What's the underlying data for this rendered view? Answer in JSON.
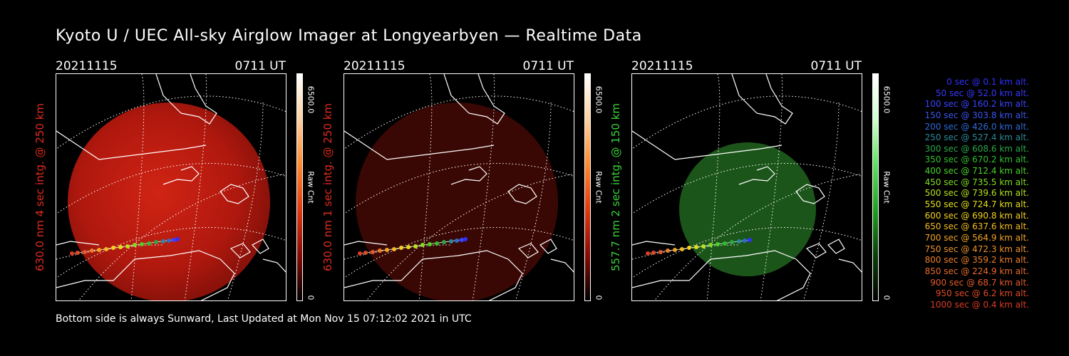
{
  "title": "Kyoto U / UEC All-sky Airglow Imager at Longyearbyen — Realtime Data",
  "footer": "Bottom side is always Sunward, Last Updated at Mon Nov 15 07:12:02 2021 in UTC",
  "colors": {
    "red_label": "#e02a1e",
    "green_label": "#3ad23a",
    "red_glow": "#c21a10",
    "red_glow_dim": "#4a0b06",
    "green_glow": "#1f5f1c"
  },
  "panels": [
    {
      "date": "20211115",
      "time": "0711 UT",
      "ylabel": "630.0 nm 4 sec intg. @ 250 km",
      "label_color": "#e02a1e",
      "cbar_max": "6500.0",
      "cbar_min": "0",
      "cbar_unit": "Raw Cnt",
      "cbar_colors": [
        "#ffffff",
        "#ffd0a0",
        "#ff8a30",
        "#e03a10",
        "#8a0a05",
        "#000000"
      ],
      "glow": "bright-red"
    },
    {
      "date": "20211115",
      "time": "0711 UT",
      "ylabel": "630.0 nm 1 sec intg. @ 250 km",
      "label_color": "#e02a1e",
      "cbar_max": "6500.0",
      "cbar_min": "0",
      "cbar_unit": "Raw Cnt",
      "cbar_colors": [
        "#ffffff",
        "#ffd0a0",
        "#ff8a30",
        "#e03a10",
        "#8a0a05",
        "#000000"
      ],
      "glow": "dim-red"
    },
    {
      "date": "20211115",
      "time": "0711 UT",
      "ylabel": "557.7 nm 2 sec intg. @ 150 km",
      "label_color": "#3ad23a",
      "cbar_max": "6500.0",
      "cbar_min": "0",
      "cbar_unit": "Raw Cnt",
      "cbar_colors": [
        "#ffffff",
        "#d0ffd0",
        "#60e060",
        "#20a020",
        "#0a400a",
        "#000000"
      ],
      "glow": "green"
    }
  ],
  "legend": [
    {
      "text": "0 sec @    0.1 km alt.",
      "color": "#3030ff"
    },
    {
      "text": "50 sec @   52.0 km alt.",
      "color": "#3838ff"
    },
    {
      "text": "100 sec @  160.2 km alt.",
      "color": "#3a44ff"
    },
    {
      "text": "150 sec @  303.8 km alt.",
      "color": "#3a55ee"
    },
    {
      "text": "200 sec @  426.0 km alt.",
      "color": "#2e6ad8"
    },
    {
      "text": "250 sec @  527.4 km alt.",
      "color": "#2a8a9a"
    },
    {
      "text": "300 sec @  608.6 km alt.",
      "color": "#2aa84a"
    },
    {
      "text": "350 sec @  670.2 km alt.",
      "color": "#30c030"
    },
    {
      "text": "400 sec @  712.4 km alt.",
      "color": "#4ad22a"
    },
    {
      "text": "450 sec @  735.5 km alt.",
      "color": "#80dc24"
    },
    {
      "text": "500 sec @  739.6 km alt.",
      "color": "#b8e21e"
    },
    {
      "text": "550 sec @  724.7 km alt.",
      "color": "#e2e01c"
    },
    {
      "text": "600 sec @  690.8 km alt.",
      "color": "#f2d21c"
    },
    {
      "text": "650 sec @  637.6 km alt.",
      "color": "#f2bc22"
    },
    {
      "text": "700 sec @  564.9 km alt.",
      "color": "#f0a428"
    },
    {
      "text": "750 sec @  472.3 km alt.",
      "color": "#ee922c"
    },
    {
      "text": "800 sec @  359.2 km alt.",
      "color": "#ec7e2c"
    },
    {
      "text": "850 sec @  224.9 km alt.",
      "color": "#e86a2a"
    },
    {
      "text": "900 sec @   68.7 km alt.",
      "color": "#e45a28"
    },
    {
      "text": "950 sec @    6.2 km alt.",
      "color": "#e04a26"
    },
    {
      "text": "1000 sec @    0.4 km alt.",
      "color": "#dc3c24"
    }
  ]
}
